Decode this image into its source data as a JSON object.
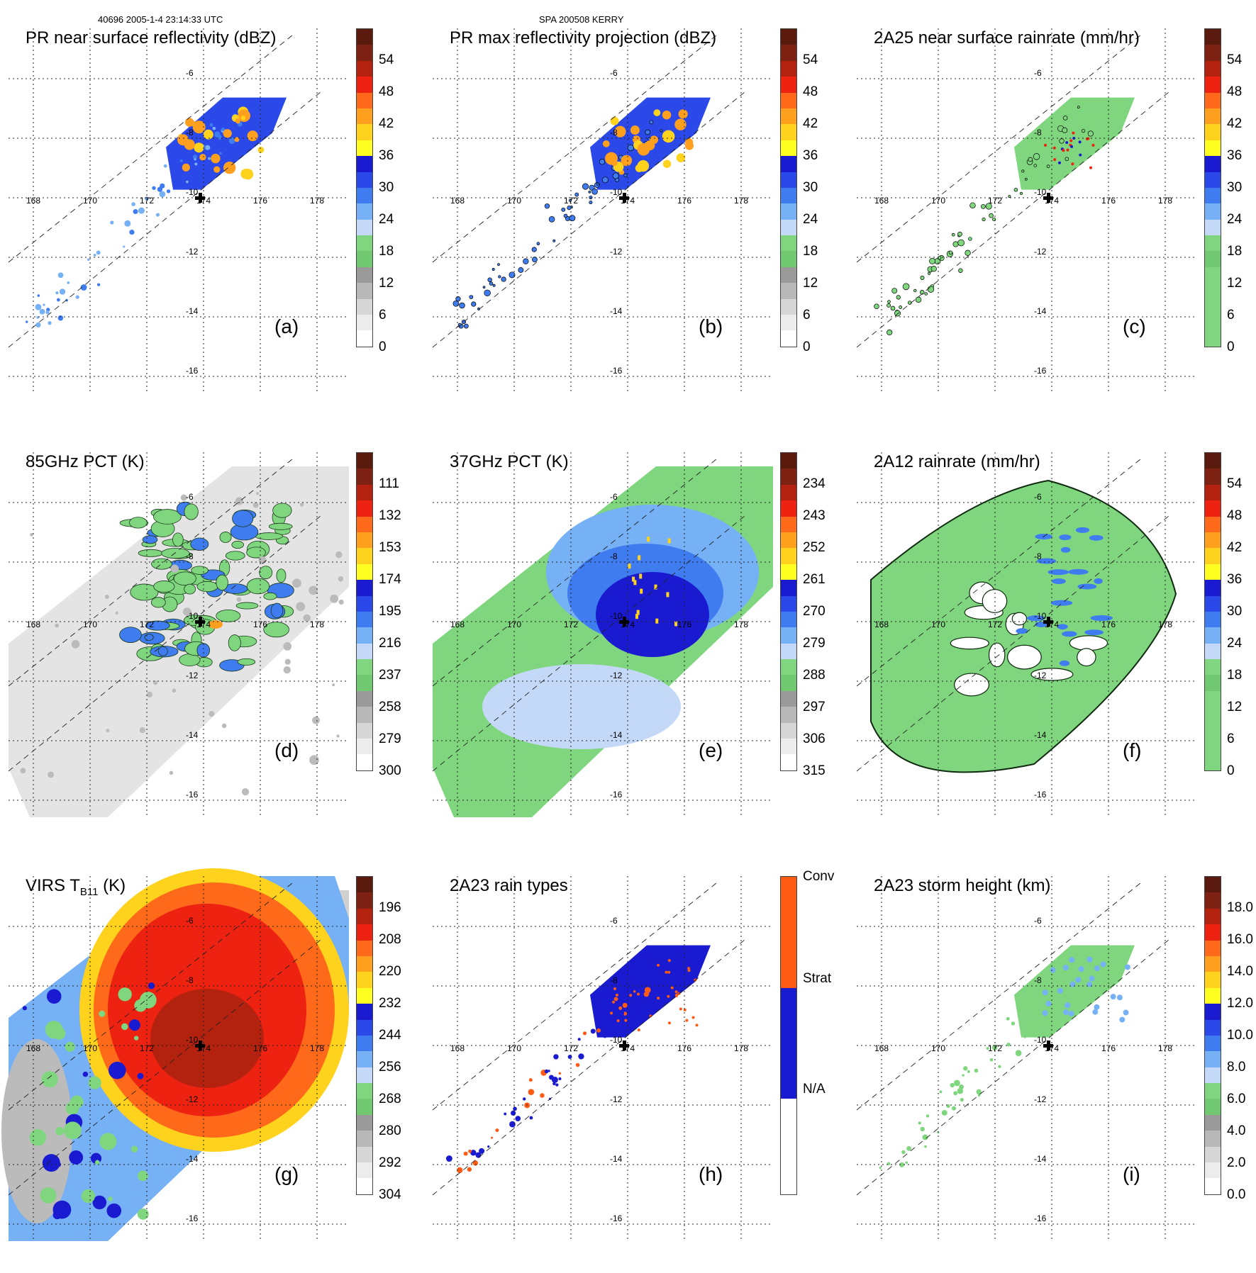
{
  "header": {
    "left": "40696 2005-1-4 23:14:33 UTC",
    "center": "SPA 200508 KERRY"
  },
  "lon_labels": [
    "168",
    "170",
    "172",
    "174",
    "176",
    "178"
  ],
  "lat_labels": [
    "-6",
    "-8",
    "-10",
    "-12",
    "-14",
    "-16"
  ],
  "storm_center": {
    "lon": 174,
    "lat": -10
  },
  "panels": [
    {
      "id": "a",
      "title": "PR near surface reflectivity (dBZ)",
      "label": "(a)",
      "ticks": [
        "54",
        "48",
        "42",
        "36",
        "30",
        "24",
        "18",
        "12",
        "6",
        "0"
      ],
      "colors": [
        "#5a1a0e",
        "#7d2112",
        "#b3210f",
        "#ee2211",
        "#ff6a1a",
        "#ff9f1e",
        "#ffd21e",
        "#ffff22",
        "#1a1ad0",
        "#2b48e8",
        "#3f7cf0",
        "#76b0f5",
        "#c4d8f8",
        "#7fd67f",
        "#70c870",
        "#9a9a9a",
        "#b8b8b8",
        "#d6d6d6",
        "#ececec",
        "#ffffff"
      ]
    },
    {
      "id": "b",
      "title": "PR max reflectivity projection (dBZ)",
      "label": "(b)",
      "ticks": [
        "54",
        "48",
        "42",
        "36",
        "30",
        "24",
        "18",
        "12",
        "6",
        "0"
      ],
      "colors": [
        "#5a1a0e",
        "#7d2112",
        "#b3210f",
        "#ee2211",
        "#ff6a1a",
        "#ff9f1e",
        "#ffd21e",
        "#ffff22",
        "#1a1ad0",
        "#2b48e8",
        "#3f7cf0",
        "#76b0f5",
        "#c4d8f8",
        "#7fd67f",
        "#70c870",
        "#9a9a9a",
        "#b8b8b8",
        "#d6d6d6",
        "#ececec",
        "#ffffff"
      ]
    },
    {
      "id": "c",
      "title": "2A25 near surface rainrate (mm/hr)",
      "label": "(c)",
      "ticks": [
        "54",
        "48",
        "42",
        "36",
        "30",
        "24",
        "18",
        "12",
        "6",
        "0"
      ],
      "colors": [
        "#5a1a0e",
        "#7d2112",
        "#b3210f",
        "#ee2211",
        "#ff6a1a",
        "#ff9f1e",
        "#ffd21e",
        "#ffff22",
        "#1a1ad0",
        "#2b48e8",
        "#3f7cf0",
        "#76b0f5",
        "#c4d8f8",
        "#7fd67f",
        "#70c870",
        "#7fd67f",
        "#7fd67f",
        "#7fd67f",
        "#7fd67f",
        "#7fd67f"
      ]
    },
    {
      "id": "d",
      "title": "85GHz PCT (K)",
      "label": "(d)",
      "ticks": [
        "111",
        "132",
        "153",
        "174",
        "195",
        "216",
        "237",
        "258",
        "279",
        "300"
      ],
      "colors": [
        "#5a1a0e",
        "#7d2112",
        "#b3210f",
        "#ee2211",
        "#ff6a1a",
        "#ff9f1e",
        "#ffd21e",
        "#ffff22",
        "#1a1ad0",
        "#2b48e8",
        "#3f7cf0",
        "#76b0f5",
        "#c4d8f8",
        "#7fd67f",
        "#70c870",
        "#9a9a9a",
        "#b8b8b8",
        "#d6d6d6",
        "#ececec",
        "#ffffff"
      ]
    },
    {
      "id": "e",
      "title": "37GHz PCT (K)",
      "label": "(e)",
      "ticks": [
        "234",
        "243",
        "252",
        "261",
        "270",
        "279",
        "288",
        "297",
        "306",
        "315"
      ],
      "colors": [
        "#5a1a0e",
        "#7d2112",
        "#b3210f",
        "#ee2211",
        "#ff6a1a",
        "#ff9f1e",
        "#ffd21e",
        "#ffff22",
        "#1a1ad0",
        "#2b48e8",
        "#3f7cf0",
        "#76b0f5",
        "#c4d8f8",
        "#7fd67f",
        "#70c870",
        "#9a9a9a",
        "#b8b8b8",
        "#d6d6d6",
        "#ececec",
        "#ffffff"
      ]
    },
    {
      "id": "f",
      "title": "2A12 rainrate (mm/hr)",
      "label": "(f)",
      "ticks": [
        "54",
        "48",
        "42",
        "36",
        "30",
        "24",
        "18",
        "12",
        "6",
        "0"
      ],
      "colors": [
        "#5a1a0e",
        "#7d2112",
        "#b3210f",
        "#ee2211",
        "#ff6a1a",
        "#ff9f1e",
        "#ffd21e",
        "#ffff22",
        "#1a1ad0",
        "#2b48e8",
        "#3f7cf0",
        "#76b0f5",
        "#c4d8f8",
        "#7fd67f",
        "#70c870",
        "#7fd67f",
        "#7fd67f",
        "#7fd67f",
        "#7fd67f",
        "#7fd67f"
      ]
    },
    {
      "id": "g",
      "title": "VIRS T",
      "title_sub": "B11",
      "title_after": " (K)",
      "label": "(g)",
      "ticks": [
        "196",
        "208",
        "220",
        "232",
        "244",
        "256",
        "268",
        "280",
        "292",
        "304"
      ],
      "colors": [
        "#5a1a0e",
        "#7d2112",
        "#b3210f",
        "#ee2211",
        "#ff6a1a",
        "#ff9f1e",
        "#ffd21e",
        "#ffff22",
        "#1a1ad0",
        "#2b48e8",
        "#3f7cf0",
        "#76b0f5",
        "#c4d8f8",
        "#7fd67f",
        "#70c870",
        "#9a9a9a",
        "#b8b8b8",
        "#d6d6d6",
        "#ececec",
        "#ffffff"
      ]
    },
    {
      "id": "h",
      "title": "2A23 rain types",
      "label": "(h)",
      "ticks": [
        "Conv",
        "Strat",
        "N/A"
      ],
      "colors": [
        "#ff5a14",
        "#ff5a14",
        "#ff5a14",
        "#ff5a14",
        "#ff5a14",
        "#ff5a14",
        "#ff5a14",
        "#1a1ad0",
        "#1a1ad0",
        "#1a1ad0",
        "#1a1ad0",
        "#1a1ad0",
        "#1a1ad0",
        "#1a1ad0",
        "#ffffff",
        "#ffffff",
        "#ffffff",
        "#ffffff",
        "#ffffff",
        "#ffffff"
      ]
    },
    {
      "id": "i",
      "title": "2A23 storm height (km)",
      "label": "(i)",
      "ticks": [
        "18.0",
        "16.0",
        "14.0",
        "12.0",
        "10.0",
        "8.0",
        "6.0",
        "4.0",
        "2.0",
        "0.0"
      ],
      "colors": [
        "#5a1a0e",
        "#7d2112",
        "#b3210f",
        "#ee2211",
        "#ff6a1a",
        "#ff9f1e",
        "#ffd21e",
        "#ffff22",
        "#1a1ad0",
        "#2b48e8",
        "#3f7cf0",
        "#76b0f5",
        "#c4d8f8",
        "#7fd67f",
        "#70c870",
        "#9a9a9a",
        "#b8b8b8",
        "#d6d6d6",
        "#ececec",
        "#ffffff"
      ]
    }
  ],
  "chart_data": {
    "type": "heatmap",
    "grid": true,
    "x_ticks": [
      168,
      170,
      172,
      174,
      176,
      178
    ],
    "y_ticks": [
      -6,
      -8,
      -10,
      -12,
      -14,
      -16
    ],
    "center_marker": [
      174,
      -10
    ]
  }
}
